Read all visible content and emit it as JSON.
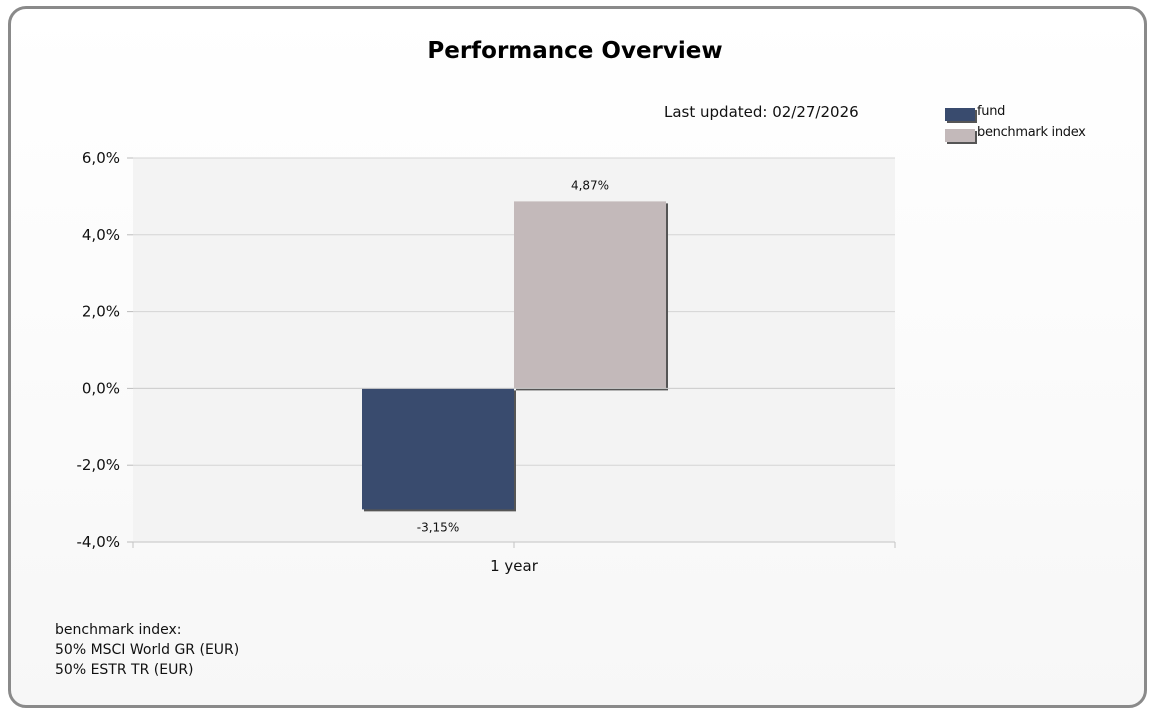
{
  "header": {
    "title": "Performance Overview",
    "last_updated": "Last updated: 02/27/2026"
  },
  "legend": [
    {
      "label": "fund",
      "color": "#394b6e"
    },
    {
      "label": "benchmark index",
      "color": "#c3b9ba"
    }
  ],
  "chart_data": {
    "type": "bar",
    "title": "Performance Overview",
    "categories": [
      "1 year"
    ],
    "series": [
      {
        "name": "fund",
        "values": [
          -3.15
        ],
        "labels": [
          "-3,15%"
        ],
        "color": "#394b6e"
      },
      {
        "name": "benchmark index",
        "values": [
          4.87
        ],
        "labels": [
          "4,87%"
        ],
        "color": "#c3b9ba"
      }
    ],
    "ylim": [
      -4,
      6
    ],
    "yticks": [
      6,
      4,
      2,
      0,
      -2,
      -4
    ],
    "ytick_labels": [
      "6,0%",
      "4,0%",
      "2,0%",
      "0,0%",
      "-2,0%",
      "-4,0%"
    ],
    "grid": true,
    "legend_position": "top-right"
  },
  "footer": {
    "heading": "benchmark index:",
    "lines": [
      "50% MSCI World GR (EUR)",
      "50% ESTR TR (EUR)"
    ]
  }
}
